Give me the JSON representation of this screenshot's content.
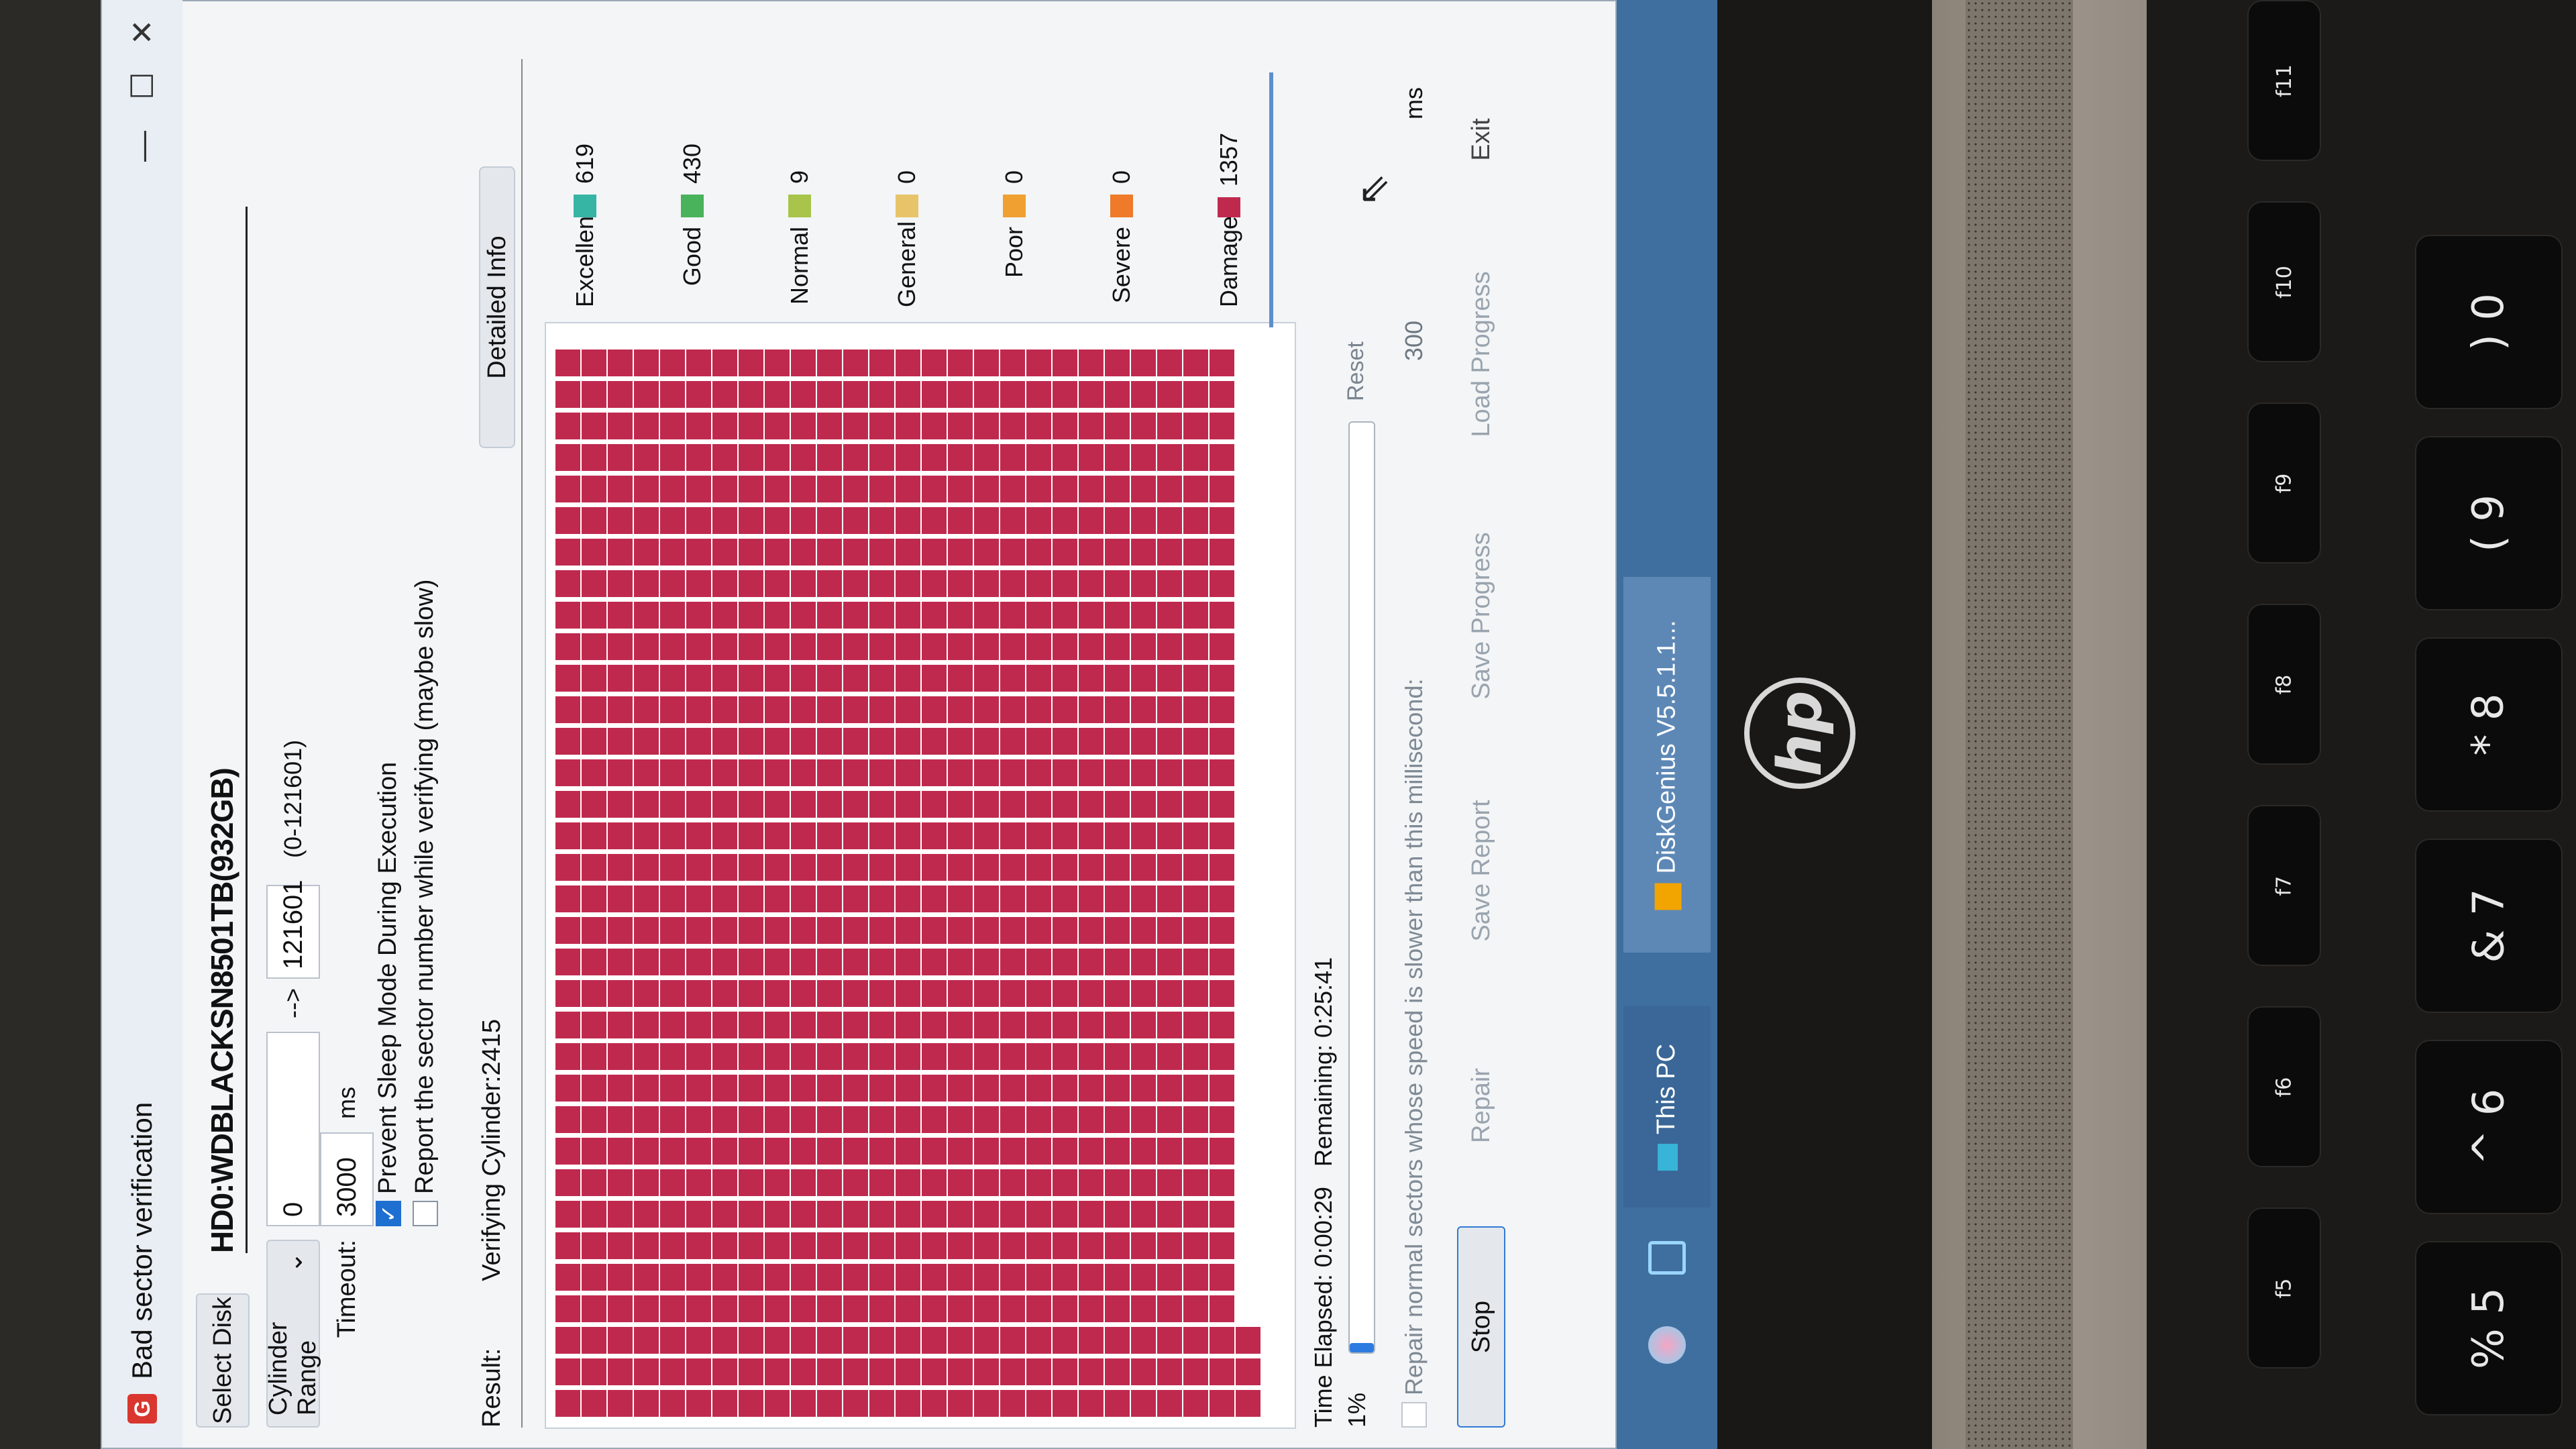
{
  "dialog": {
    "title": "Bad sector verification",
    "window_controls": {
      "minimize": "—",
      "maximize": "☐",
      "close": "✕"
    },
    "select_disk_label": "Select Disk",
    "disk_name": "HD0:WDBLACKSN8501TB(932GB)",
    "cylinder_range_label": "Cylinder Range",
    "cylinder_start": "0",
    "cylinder_arrow": "-->",
    "cylinder_end": "121601",
    "cylinder_limits": "(0-121601)",
    "timeout_label": "Timeout:",
    "timeout_value": "3000",
    "timeout_unit": "ms",
    "prevent_sleep_label": "Prevent Sleep Mode During Execution",
    "prevent_sleep_checked": true,
    "report_sector_label": "Report the sector number while verifying (maybe slow)",
    "report_sector_checked": false,
    "result_label": "Result:",
    "verifying_text": "Verifying Cylinder:2415",
    "detailed_info_tab": "Detailed Info",
    "legend": [
      {
        "name": "Excellent",
        "count": "619",
        "color": "#36b5a5"
      },
      {
        "name": "Good",
        "count": "430",
        "color": "#48b35a"
      },
      {
        "name": "Normal",
        "count": "9",
        "color": "#a8c44a"
      },
      {
        "name": "General",
        "count": "0",
        "color": "#e7c46a"
      },
      {
        "name": "Poor",
        "count": "0",
        "color": "#f0a030"
      },
      {
        "name": "Severe",
        "count": "0",
        "color": "#ee7a2a"
      },
      {
        "name": "Damaged",
        "count": "1357",
        "color": "#c0294e"
      }
    ],
    "time_elapsed_label": "Time Elapsed:",
    "time_elapsed_value": "0:00:29",
    "remaining_label": "Remaining:",
    "remaining_value": "0:25:41",
    "progress_percent": "1%",
    "progress_fraction": 0.01,
    "reset_label": "Reset",
    "repair_option_label": "Repair normal sectors whose speed is slower than this millisecond:",
    "repair_threshold_value": "300",
    "repair_threshold_unit": "ms",
    "buttons": {
      "stop": "Stop",
      "repair": "Repair",
      "save_report": "Save Report",
      "save_progress": "Save Progress",
      "load_progress": "Load Progress",
      "exit": "Exit"
    },
    "sector_fill_color": "#c0294e"
  },
  "taskbar": {
    "this_pc_label": "This PC",
    "diskgenius_label": "DiskGenius V5.5.1.1..."
  },
  "keyboard": {
    "fn_keys": [
      "f5",
      "f6",
      "f7",
      "f8",
      "f9",
      "f10",
      "f11"
    ],
    "number_keys": [
      "5",
      "6",
      "7",
      "8",
      "9",
      "0"
    ],
    "symbol_keys": [
      "%",
      "^",
      "&",
      "*",
      "(",
      ")"
    ]
  },
  "hp_logo": "hp"
}
